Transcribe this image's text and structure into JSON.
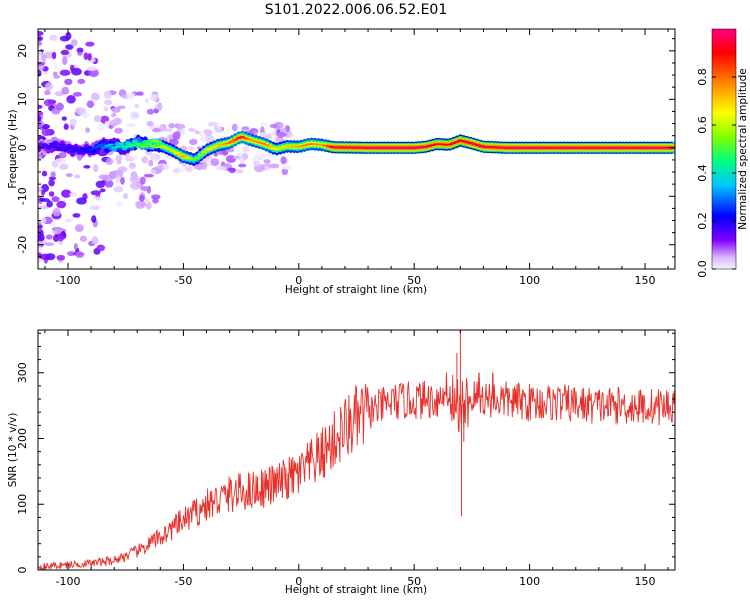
{
  "title": "S101.2022.006.06.52.E01",
  "chart_data": [
    {
      "type": "heatmap",
      "xlabel": "Height of straight line (km)",
      "ylabel": "Frequency (Hz)",
      "xlim": [
        -113,
        163
      ],
      "ylim": [
        -25,
        24.5
      ],
      "xticks": [
        -100,
        -50,
        0,
        50,
        100,
        150
      ],
      "yticks": [
        -20,
        -10,
        0,
        10,
        20
      ],
      "grid": false,
      "colorbar": {
        "label": "Normalized spectral amplitude",
        "range": [
          0,
          1
        ],
        "ticks": [
          0.0,
          0.2,
          0.4,
          0.6,
          0.8
        ],
        "colors": [
          "#f2f2ff",
          "#d9b3ff",
          "#8000ff",
          "#0000ff",
          "#00c8ff",
          "#00ff80",
          "#80ff00",
          "#ffff00",
          "#ff8000",
          "#ff0000",
          "#ff0080"
        ]
      },
      "ridge": {
        "x": [
          -113,
          -105,
          -95,
          -85,
          -80,
          -70,
          -62,
          -55,
          -50,
          -45,
          -40,
          -35,
          -30,
          -25,
          -20,
          -15,
          -10,
          -5,
          0,
          5,
          10,
          15,
          30,
          50,
          55,
          60,
          65,
          70,
          75,
          80,
          90,
          100,
          120,
          140,
          163
        ],
        "y": [
          0.0,
          0.4,
          -0.8,
          0.3,
          0.2,
          0.8,
          0.9,
          -0.5,
          -1.8,
          -2.5,
          -0.5,
          0.5,
          1.0,
          2.3,
          1.5,
          0.8,
          -0.3,
          0.3,
          0.2,
          0.8,
          0.6,
          0.1,
          0.0,
          0.0,
          0.2,
          0.8,
          0.6,
          1.5,
          0.9,
          0.2,
          0.0,
          0.0,
          0.0,
          0.0,
          0.0
        ],
        "amplitude": [
          0.15,
          0.2,
          0.2,
          0.3,
          0.4,
          0.5,
          0.6,
          0.6,
          0.75,
          0.5,
          0.65,
          0.7,
          0.8,
          0.9,
          0.75,
          0.8,
          0.65,
          0.7,
          0.75,
          0.8,
          0.75,
          0.95,
          0.97,
          0.98,
          0.95,
          0.9,
          0.9,
          0.9,
          0.95,
          0.95,
          0.97,
          0.97,
          0.97,
          0.97,
          0.97
        ]
      }
    },
    {
      "type": "line",
      "xlabel": "Height of straight line (km)",
      "ylabel": "SNR (10 * v/v)",
      "xlim": [
        -113,
        163
      ],
      "ylim": [
        0,
        365
      ],
      "xticks": [
        -100,
        -50,
        0,
        50,
        100,
        150
      ],
      "yticks": [
        0,
        100,
        200,
        300
      ],
      "grid": false,
      "series": [
        {
          "color": "#e8302b",
          "x": [
            -113,
            -100,
            -90,
            -80,
            -70,
            -60,
            -50,
            -40,
            -30,
            -20,
            -10,
            0,
            10,
            20,
            30,
            40,
            50,
            60,
            65,
            70,
            75,
            80,
            90,
            100,
            110,
            120,
            130,
            140,
            150,
            163
          ],
          "y": [
            5,
            8,
            10,
            15,
            28,
            50,
            75,
            98,
            115,
            122,
            130,
            145,
            175,
            215,
            240,
            255,
            258,
            260,
            265,
            250,
            262,
            262,
            258,
            255,
            255,
            252,
            250,
            250,
            248,
            250
          ],
          "spikes": [
            {
              "x": 70.0,
              "y": 365
            },
            {
              "x": 70.5,
              "y": 82
            },
            {
              "x": 68.5,
              "y": 330
            },
            {
              "x": 71.5,
              "y": 195
            },
            {
              "x": 64.0,
              "y": 300
            },
            {
              "x": 78.0,
              "y": 300
            },
            {
              "x": 84.0,
              "y": 300
            }
          ]
        }
      ]
    }
  ]
}
